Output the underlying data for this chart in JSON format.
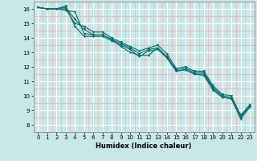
{
  "xlabel": "Humidex (Indice chaleur)",
  "ylabel": "",
  "xlim": [
    -0.5,
    23.5
  ],
  "ylim": [
    7.5,
    16.5
  ],
  "xticks": [
    0,
    1,
    2,
    3,
    4,
    5,
    6,
    7,
    8,
    9,
    10,
    11,
    12,
    13,
    14,
    15,
    16,
    17,
    18,
    19,
    20,
    21,
    22,
    23
  ],
  "yticks": [
    8,
    9,
    10,
    11,
    12,
    13,
    14,
    15,
    16
  ],
  "bg_color": "#c8e8e8",
  "major_grid_color": "#ffffff",
  "minor_grid_color": "#e8b8b8",
  "line_color": "#007070",
  "lines": [
    [
      16.1,
      16.0,
      16.0,
      16.2,
      14.8,
      14.1,
      14.1,
      14.1,
      13.8,
      13.5,
      13.2,
      12.7,
      13.1,
      13.2,
      12.6,
      11.7,
      11.8,
      11.5,
      11.5,
      10.5,
      9.9,
      9.8,
      8.5,
      9.3
    ],
    [
      16.1,
      16.0,
      16.0,
      16.1,
      15.3,
      14.6,
      14.2,
      14.2,
      13.9,
      13.6,
      13.3,
      12.9,
      13.2,
      13.3,
      12.7,
      11.8,
      11.9,
      11.6,
      11.6,
      10.6,
      10.0,
      9.9,
      8.7,
      9.3
    ],
    [
      16.1,
      16.0,
      16.0,
      15.9,
      15.8,
      14.3,
      14.2,
      14.2,
      13.9,
      13.4,
      13.0,
      12.8,
      12.8,
      13.3,
      12.7,
      11.7,
      11.8,
      11.5,
      11.4,
      10.4,
      9.9,
      9.8,
      8.4,
      9.2
    ],
    [
      16.1,
      16.0,
      16.0,
      16.0,
      15.0,
      14.8,
      14.4,
      14.4,
      14.0,
      13.7,
      13.4,
      13.1,
      13.3,
      13.5,
      12.9,
      11.9,
      12.0,
      11.7,
      11.7,
      10.7,
      10.1,
      10.0,
      8.6,
      9.4
    ]
  ]
}
